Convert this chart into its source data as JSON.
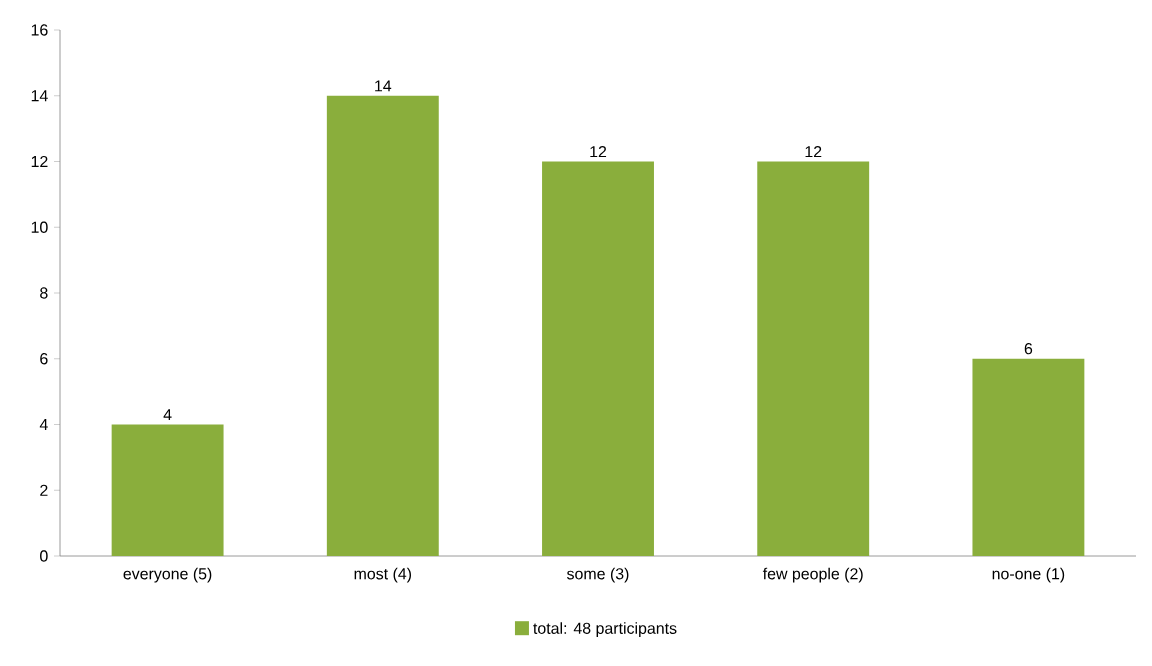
{
  "chart_data": {
    "type": "bar",
    "categories": [
      "everyone (5)",
      "most (4)",
      "some (3)",
      "few people (2)",
      "no-one (1)"
    ],
    "series": [
      {
        "name": "total: 48 participants",
        "color": "#8aae3c",
        "values": [
          4,
          14,
          12,
          12,
          6
        ]
      }
    ],
    "ylim": [
      0,
      16
    ],
    "yticks": [
      0,
      2,
      4,
      6,
      8,
      10,
      12,
      14,
      16
    ],
    "grid": false,
    "legend": "bottom",
    "data_labels": true
  }
}
